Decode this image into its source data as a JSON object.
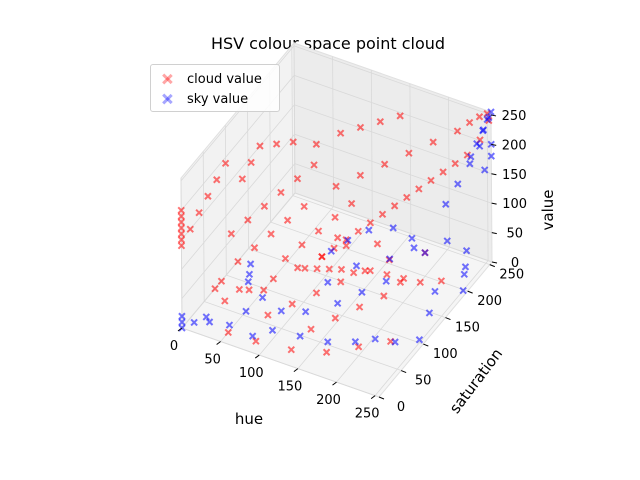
{
  "chart_data": {
    "type": "scatter",
    "projection": "3d",
    "title": "HSV colour space point cloud",
    "xlabel": "hue",
    "ylabel": "saturation",
    "zlabel": "value",
    "xlim": [
      0,
      255
    ],
    "ylim": [
      0,
      255
    ],
    "zlim": [
      0,
      255
    ],
    "xticks": [
      0,
      50,
      100,
      150,
      200,
      250
    ],
    "yticks": [
      0,
      50,
      100,
      150,
      200,
      250
    ],
    "zticks": [
      0,
      50,
      100,
      150,
      200,
      250
    ],
    "grid": true,
    "legend_position": "top-left",
    "marker": "x",
    "series": [
      {
        "name": "cloud value",
        "color": "#ff0000",
        "alpha": 0.25,
        "points": [
          [
            0,
            0,
            140
          ],
          [
            0,
            0,
            150
          ],
          [
            0,
            0,
            160
          ],
          [
            0,
            0,
            170
          ],
          [
            0,
            0,
            180
          ],
          [
            0,
            0,
            190
          ],
          [
            0,
            0,
            200
          ],
          [
            0,
            20,
            150
          ],
          [
            0,
            40,
            160
          ],
          [
            0,
            60,
            170
          ],
          [
            0,
            80,
            180
          ],
          [
            0,
            100,
            190
          ],
          [
            10,
            120,
            150
          ],
          [
            10,
            140,
            160
          ],
          [
            10,
            160,
            170
          ],
          [
            20,
            180,
            160
          ],
          [
            30,
            200,
            150
          ],
          [
            30,
            60,
            120
          ],
          [
            40,
            80,
            130
          ],
          [
            50,
            100,
            140
          ],
          [
            60,
            120,
            150
          ],
          [
            70,
            140,
            160
          ],
          [
            80,
            160,
            170
          ],
          [
            40,
            20,
            80
          ],
          [
            50,
            40,
            100
          ],
          [
            60,
            60,
            110
          ],
          [
            70,
            80,
            120
          ],
          [
            80,
            100,
            130
          ],
          [
            90,
            120,
            140
          ],
          [
            50,
            10,
            60
          ],
          [
            70,
            30,
            70
          ],
          [
            90,
            50,
            80
          ],
          [
            110,
            70,
            90
          ],
          [
            130,
            90,
            100
          ],
          [
            150,
            110,
            110
          ],
          [
            100,
            20,
            50
          ],
          [
            120,
            40,
            60
          ],
          [
            140,
            60,
            70
          ],
          [
            160,
            80,
            80
          ],
          [
            180,
            100,
            90
          ],
          [
            200,
            120,
            100
          ],
          [
            100,
            60,
            110
          ],
          [
            110,
            80,
            120
          ],
          [
            120,
            100,
            130
          ],
          [
            130,
            120,
            140
          ],
          [
            140,
            140,
            150
          ],
          [
            150,
            30,
            40
          ],
          [
            170,
            50,
            50
          ],
          [
            190,
            70,
            60
          ],
          [
            210,
            90,
            70
          ],
          [
            220,
            110,
            80
          ],
          [
            120,
            140,
            170
          ],
          [
            140,
            160,
            180
          ],
          [
            160,
            180,
            190
          ],
          [
            180,
            200,
            200
          ],
          [
            200,
            220,
            210
          ],
          [
            220,
            240,
            220
          ],
          [
            230,
            250,
            230
          ],
          [
            240,
            255,
            240
          ],
          [
            250,
            255,
            250
          ],
          [
            255,
            250,
            245
          ],
          [
            255,
            230,
            230
          ],
          [
            250,
            210,
            220
          ],
          [
            240,
            200,
            210
          ],
          [
            230,
            190,
            200
          ],
          [
            220,
            180,
            190
          ],
          [
            210,
            170,
            180
          ],
          [
            200,
            160,
            170
          ],
          [
            190,
            150,
            160
          ],
          [
            180,
            140,
            150
          ],
          [
            170,
            130,
            140
          ],
          [
            160,
            120,
            130
          ],
          [
            150,
            110,
            120
          ],
          [
            140,
            100,
            110
          ],
          [
            130,
            90,
            100
          ],
          [
            60,
            200,
            160
          ],
          [
            80,
            220,
            170
          ],
          [
            100,
            230,
            180
          ],
          [
            120,
            240,
            190
          ],
          [
            140,
            250,
            200
          ],
          [
            60,
            0,
            20
          ],
          [
            90,
            10,
            10
          ],
          [
            130,
            20,
            5
          ],
          [
            170,
            30,
            10
          ],
          [
            200,
            50,
            15
          ],
          [
            230,
            70,
            20
          ],
          [
            20,
            40,
            40
          ],
          [
            40,
            60,
            30
          ],
          [
            60,
            80,
            20
          ],
          [
            110,
            160,
            60
          ],
          [
            150,
            180,
            50
          ],
          [
            200,
            200,
            40
          ],
          [
            250,
            150,
            60
          ],
          [
            240,
            120,
            80
          ],
          [
            230,
            100,
            100
          ],
          [
            220,
            80,
            120
          ],
          [
            210,
            60,
            140
          ],
          [
            200,
            40,
            150
          ],
          [
            190,
            30,
            160
          ],
          [
            180,
            20,
            165
          ],
          [
            170,
            10,
            170
          ],
          [
            160,
            0,
            175
          ]
        ]
      },
      {
        "name": "sky value",
        "color": "#0000ff",
        "alpha": 0.25,
        "points": [
          [
            0,
            0,
            0
          ],
          [
            0,
            0,
            10
          ],
          [
            0,
            0,
            20
          ],
          [
            10,
            10,
            5
          ],
          [
            20,
            20,
            10
          ],
          [
            30,
            10,
            15
          ],
          [
            50,
            20,
            10
          ],
          [
            80,
            20,
            5
          ],
          [
            100,
            30,
            15
          ],
          [
            130,
            40,
            10
          ],
          [
            160,
            50,
            5
          ],
          [
            190,
            60,
            10
          ],
          [
            210,
            70,
            15
          ],
          [
            230,
            80,
            10
          ],
          [
            250,
            100,
            5
          ],
          [
            240,
            140,
            10
          ],
          [
            230,
            170,
            15
          ],
          [
            255,
            190,
            10
          ],
          [
            245,
            210,
            15
          ],
          [
            235,
            230,
            5
          ],
          [
            225,
            250,
            10
          ],
          [
            200,
            250,
            15
          ],
          [
            160,
            240,
            10
          ],
          [
            130,
            250,
            5
          ],
          [
            110,
            230,
            10
          ],
          [
            100,
            200,
            15
          ],
          [
            90,
            180,
            10
          ],
          [
            160,
            190,
            20
          ],
          [
            180,
            210,
            30
          ],
          [
            200,
            200,
            40
          ],
          [
            120,
            120,
            25
          ],
          [
            140,
            150,
            35
          ],
          [
            60,
            40,
            20
          ],
          [
            70,
            60,
            30
          ],
          [
            40,
            80,
            25
          ],
          [
            30,
            100,
            15
          ],
          [
            20,
            120,
            10
          ],
          [
            210,
            230,
            100
          ],
          [
            220,
            240,
            130
          ],
          [
            230,
            250,
            160
          ],
          [
            240,
            255,
            190
          ],
          [
            245,
            255,
            220
          ],
          [
            250,
            255,
            240
          ],
          [
            255,
            255,
            255
          ],
          [
            255,
            250,
            250
          ],
          [
            250,
            245,
            230
          ],
          [
            245,
            240,
            210
          ],
          [
            240,
            235,
            190
          ],
          [
            255,
            255,
            200
          ],
          [
            255,
            255,
            180
          ],
          [
            255,
            240,
            170
          ],
          [
            150,
            90,
            30
          ],
          [
            170,
            110,
            40
          ],
          [
            190,
            130,
            50
          ],
          [
            120,
            70,
            20
          ],
          [
            100,
            50,
            30
          ]
        ]
      }
    ]
  }
}
